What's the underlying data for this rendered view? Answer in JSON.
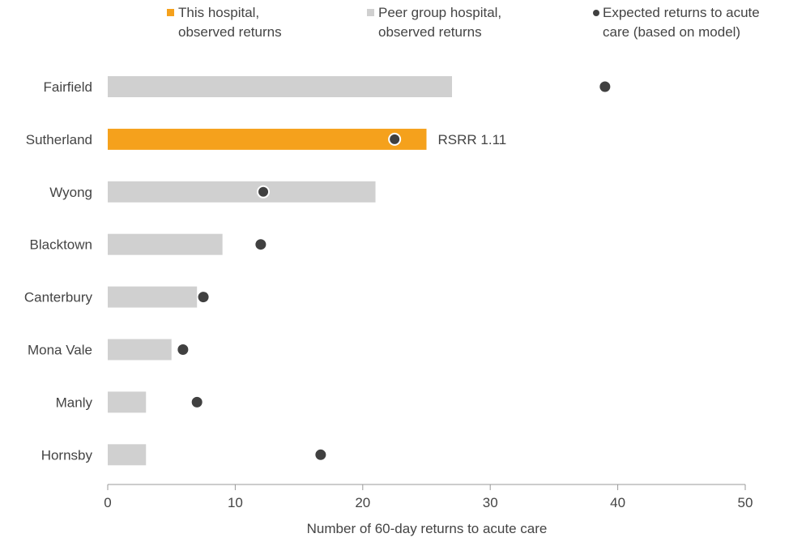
{
  "colors": {
    "highlight": "#F5A11C",
    "peer": "#D0D0D0",
    "expected_dot": "#404040",
    "axis": "#999999",
    "text": "#444444"
  },
  "legend": {
    "highlight": {
      "line1": "This hospital,",
      "line2": "observed returns"
    },
    "peer": {
      "line1": "Peer group hospital,",
      "line2": "observed returns"
    },
    "expected": {
      "line1": "Expected returns to acute",
      "line2": "care (based on model)"
    }
  },
  "chart_data": {
    "type": "bar",
    "orientation": "horizontal",
    "categories": [
      "Fairfield",
      "Sutherland",
      "Wyong",
      "Blacktown",
      "Canterbury",
      "Mona Vale",
      "Manly",
      "Hornsby"
    ],
    "series": [
      {
        "name": "This hospital, observed returns",
        "values": [
          null,
          25,
          null,
          null,
          null,
          null,
          null,
          null
        ]
      },
      {
        "name": "Peer group hospital, observed returns",
        "values": [
          27,
          null,
          21,
          9,
          7,
          5,
          3,
          3
        ]
      },
      {
        "name": "Expected returns to acute care (based on model)",
        "values": [
          39,
          22.5,
          12.2,
          12,
          7.5,
          5.9,
          7,
          16.7
        ],
        "marker": "dot"
      }
    ],
    "highlight_category": "Sutherland",
    "annotations": [
      {
        "category": "Sutherland",
        "text": "RSRR 1.11"
      }
    ],
    "xlabel": "Number of 60-day returns to acute care",
    "xlim": [
      0,
      50
    ],
    "xticks": [
      0,
      10,
      20,
      30,
      40,
      50
    ],
    "grid": false,
    "legend_position": "top"
  }
}
